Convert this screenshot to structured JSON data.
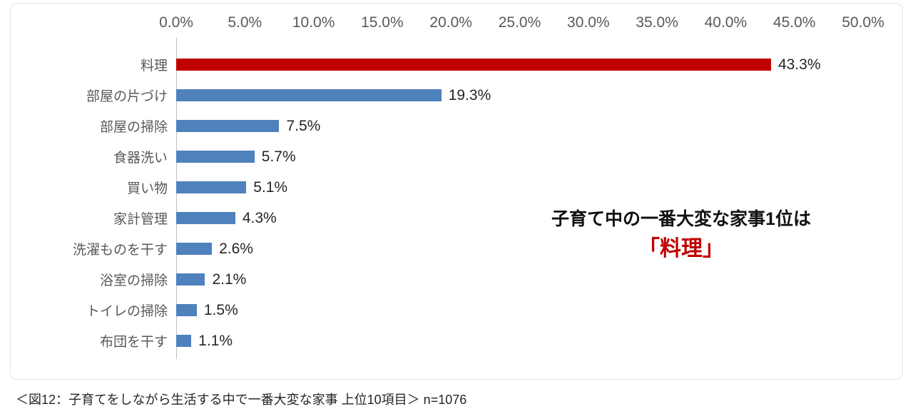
{
  "chart_data": {
    "type": "bar",
    "orientation": "horizontal",
    "title": "",
    "categories": [
      "料理",
      "部屋の片づけ",
      "部屋の掃除",
      "食器洗い",
      "買い物",
      "家計管理",
      "洗濯ものを干す",
      "浴室の掃除",
      "トイレの掃除",
      "布団を干す"
    ],
    "values": [
      43.3,
      19.3,
      7.5,
      5.7,
      5.1,
      4.3,
      2.6,
      2.1,
      1.5,
      1.1
    ],
    "value_labels": [
      "43.3%",
      "19.3%",
      "7.5%",
      "5.7%",
      "5.1%",
      "4.3%",
      "2.6%",
      "2.1%",
      "1.5%",
      "1.1%"
    ],
    "bar_colors": [
      "#c00000",
      "#4f81bd",
      "#4f81bd",
      "#4f81bd",
      "#4f81bd",
      "#4f81bd",
      "#4f81bd",
      "#4f81bd",
      "#4f81bd",
      "#4f81bd"
    ],
    "xlim": [
      0,
      50
    ],
    "x_ticks": [
      "0.0%",
      "5.0%",
      "10.0%",
      "15.0%",
      "20.0%",
      "25.0%",
      "30.0%",
      "35.0%",
      "40.0%",
      "45.0%",
      "50.0%"
    ],
    "grid": false,
    "legend": "none",
    "axis_position": "top"
  },
  "annotation": {
    "line1": "子育て中の一番大変な家事1位は",
    "line2": "「料理」",
    "line2_color": "#c00000"
  },
  "caption": "＜図12：子育てをしながら生活する中で一番大変な家事 上位10項目＞ n=1076"
}
